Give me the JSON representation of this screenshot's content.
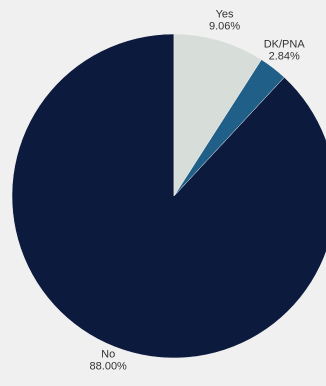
{
  "chart_data": {
    "type": "pie",
    "title": "",
    "start_angle_deg": 0,
    "direction": "counterclockwise",
    "slices": [
      {
        "label": "No",
        "value": 88.0,
        "value_text": "88.00%",
        "color": "#0b1a3d"
      },
      {
        "label": "DK/PNA",
        "value": 2.84,
        "value_text": "2.84%",
        "color": "#1f5f88"
      },
      {
        "label": "Yes",
        "value": 9.06,
        "value_text": "9.06%",
        "color": "#d7ddd9"
      }
    ]
  }
}
